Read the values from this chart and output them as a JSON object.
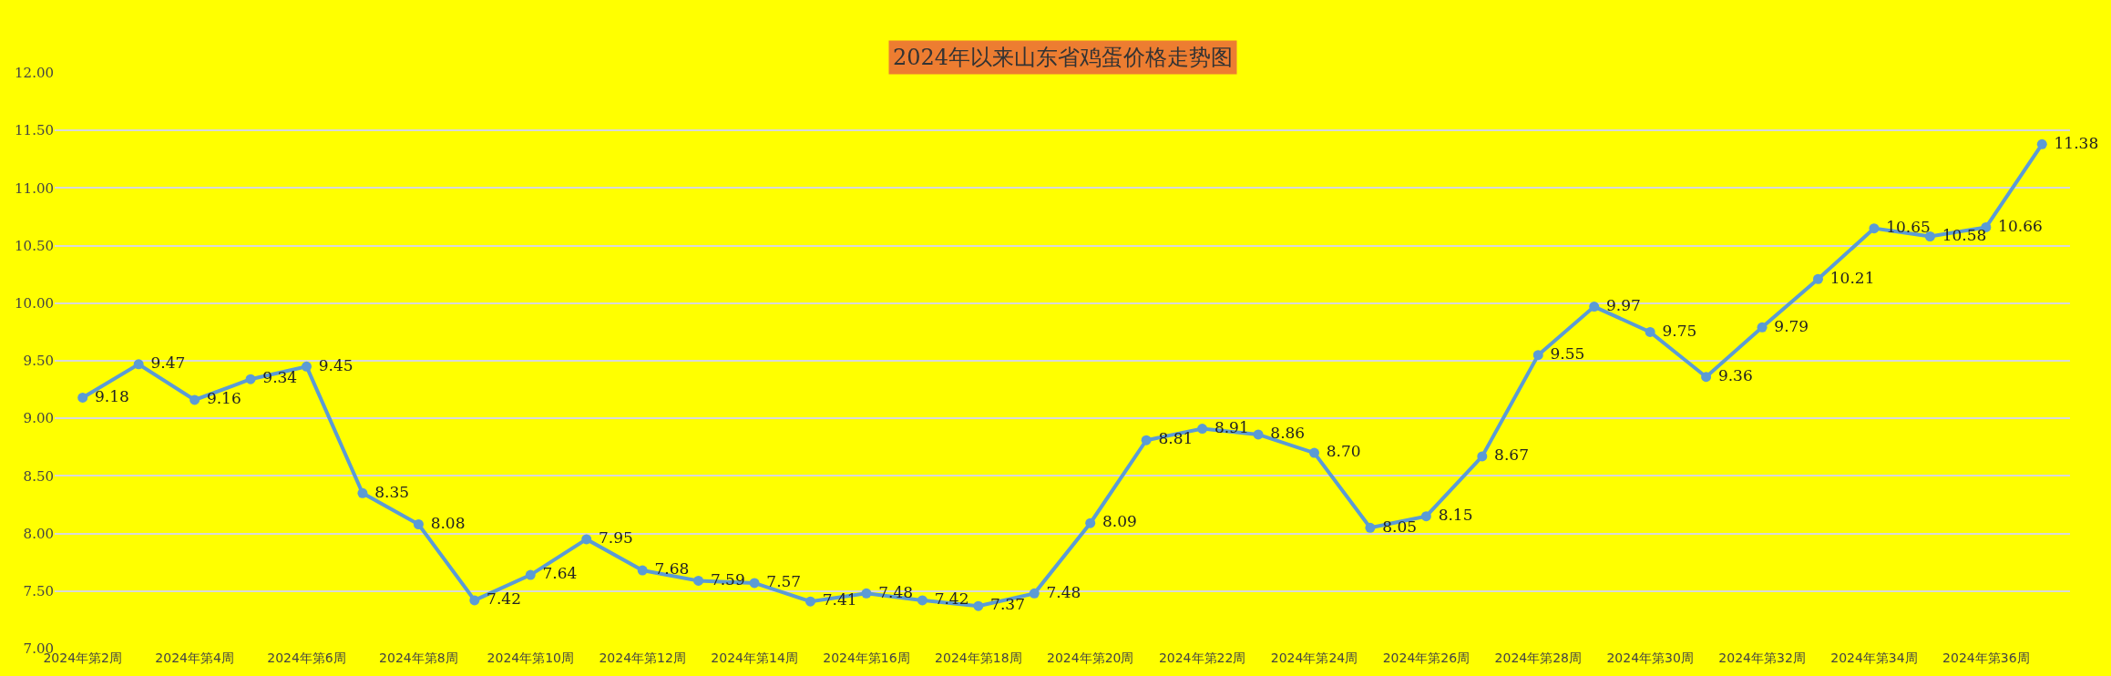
{
  "chart_data": {
    "type": "line",
    "title": "2024年以来山东省鸡蛋价格走势图",
    "categories": [
      "2024年第2周",
      null,
      "2024年第4周",
      null,
      "2024年第6周",
      null,
      "2024年第8周",
      null,
      "2024年第10周",
      null,
      "2024年第12周",
      null,
      "2024年第14周",
      null,
      "2024年第16周",
      null,
      "2024年第18周",
      null,
      "2024年第20周",
      null,
      "2024年第22周",
      null,
      "2024年第24周",
      null,
      "2024年第26周",
      null,
      "2024年第28周",
      null,
      "2024年第30周",
      null,
      "2024年第32周",
      null,
      "2024年第34周",
      null,
      "2024年第36周",
      null
    ],
    "series": [
      {
        "color": "#5b9bd5",
        "values": [
          9.18,
          9.47,
          9.16,
          9.34,
          9.45,
          8.35,
          8.08,
          7.42,
          7.64,
          7.95,
          7.68,
          7.59,
          7.57,
          7.41,
          7.48,
          7.42,
          7.37,
          7.48,
          8.09,
          8.81,
          8.91,
          8.86,
          8.7,
          8.05,
          8.15,
          8.67,
          9.55,
          9.97,
          9.75,
          9.36,
          9.79,
          10.21,
          10.65,
          10.58,
          10.66,
          11.38
        ],
        "value_labels": [
          "9.18",
          "9.47",
          "9.16",
          "9.34",
          "9.45",
          "8.35",
          "8.08",
          "7.42",
          "7.64",
          "7.95",
          "7.68",
          "7.59",
          "7.57",
          "7.41",
          "7.48",
          "7.42",
          "7.37",
          "7.48",
          "8.09",
          "8.81",
          "8.91",
          "8.86",
          "8.70",
          "8.05",
          "8.15",
          "8.67",
          "9.55",
          "9.97",
          "9.75",
          "9.36",
          "9.79",
          "10.21",
          "10.65",
          "10.58",
          "10.66",
          "11.38"
        ]
      }
    ],
    "ylim": [
      7,
      12
    ],
    "yticks": [
      {
        "value": 7,
        "label": "7.00"
      },
      {
        "value": 7.5,
        "label": "7.50"
      },
      {
        "value": 8,
        "label": "8.00"
      },
      {
        "value": 8.5,
        "label": "8.50"
      },
      {
        "value": 9,
        "label": "9.00"
      },
      {
        "value": 9.5,
        "label": "9.50"
      },
      {
        "value": 10,
        "label": "10.00"
      },
      {
        "value": 10.5,
        "label": "10.50"
      },
      {
        "value": 11,
        "label": "11.00"
      },
      {
        "value": 11.5,
        "label": "11.50"
      },
      {
        "value": 12,
        "label": "12.00"
      }
    ],
    "grid": "y",
    "marker": "circle",
    "line_style": "solid"
  }
}
